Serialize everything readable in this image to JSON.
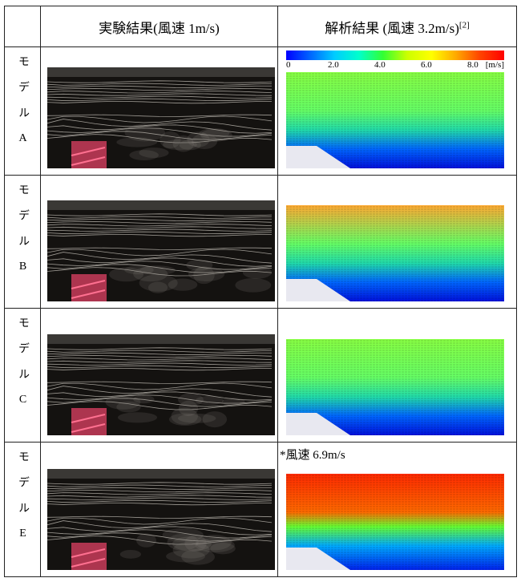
{
  "header": {
    "experiment": "実験結果(風速 1m/s)",
    "analysis": "解析結果 (風速 3.2m/s)",
    "analysis_sup": "[2]"
  },
  "colorbar": {
    "ticks": [
      "0",
      "2.0",
      "4.0",
      "6.0",
      "8.0"
    ],
    "unit": "[m/s]"
  },
  "rows": [
    {
      "label": "モデルA"
    },
    {
      "label": "モデルB"
    },
    {
      "label": "モデルC"
    },
    {
      "label": "モデルE",
      "note": "*風速 6.9m/s"
    }
  ]
}
